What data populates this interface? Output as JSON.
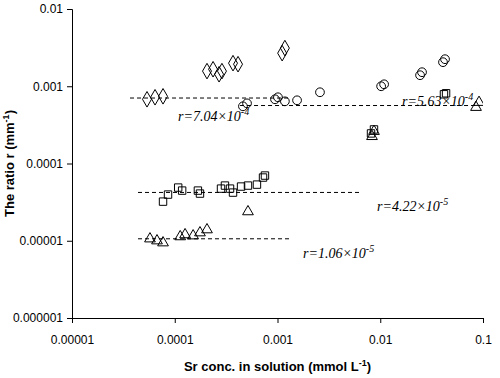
{
  "chart_data": {
    "type": "scatter",
    "log": true,
    "x_label": {
      "text": "Sr conc. in solution (mmol L",
      "superscript": "-1",
      "end": ")"
    },
    "y_label": {
      "text": "The ratio r (mm",
      "superscript": "-1",
      "end": ")"
    },
    "xlim": [
      1e-05,
      0.1
    ],
    "ylim": [
      1e-06,
      0.01
    ],
    "xticks": [
      1e-05,
      0.0001,
      0.001,
      0.01,
      0.1
    ],
    "yticks": [
      1e-06,
      1e-05,
      0.0001,
      0.001,
      0.01
    ],
    "series": [
      {
        "marker": "diamond",
        "color": "#000000",
        "x": [
          5.37e-05,
          6.43e-05,
          7.69e-05,
          0.000206,
          0.000236,
          0.00027,
          0.000288,
          0.000369,
          0.000413,
          0.00111,
          0.00118
        ],
        "values": [
          0.000678,
          0.00072,
          0.000741,
          0.00157,
          0.00166,
          0.00143,
          0.00157,
          0.00199,
          0.00193,
          0.00268,
          0.00312
        ]
      },
      {
        "marker": "circle",
        "color": "#000000",
        "x": [
          0.000461,
          0.000505,
          0.000946,
          0.00101,
          0.00118,
          0.00155,
          0.00259,
          0.0102,
          0.0109,
          0.0244,
          0.0255,
          0.0408,
          0.0427
        ],
        "values": [
          0.00055,
          0.000601,
          0.000678,
          0.00072,
          0.000638,
          0.000658,
          0.000836,
          0.001,
          0.00106,
          0.00139,
          0.00152,
          0.00205,
          0.00224
        ]
      },
      {
        "marker": "square",
        "color": "#000000",
        "x": [
          7.69e-05,
          8.6e-05,
          0.000108,
          0.000118,
          0.000168,
          0.000176,
          0.000282,
          0.000308,
          0.000345,
          0.000369,
          0.000442,
          0.000516,
          0.000631,
          0.000723,
          0.000755,
          0.00813,
          0.00869,
          0.0417,
          0.0437
        ],
        "values": [
          3.21e-05,
          3.96e-05,
          4.88e-05,
          4.46e-05,
          4.46e-05,
          4.08e-05,
          4.73e-05,
          5.18e-05,
          4.73e-05,
          4.2e-05,
          5.03e-05,
          5.18e-05,
          5.33e-05,
          6.58e-05,
          6.98e-05,
          0.000245,
          0.000276,
          0.000787,
          0.000811
        ]
      },
      {
        "marker": "triangle",
        "color": "#000000",
        "x": [
          5.74e-05,
          6.72e-05,
          7.69e-05,
          0.000113,
          0.000126,
          0.000151,
          0.000176,
          0.000206,
          0.000516,
          0.00831,
          0.00869,
          0.0855,
          0.0915
        ],
        "values": [
          1.06e-05,
          1e-05,
          9.42e-06,
          1.13e-05,
          1.2e-05,
          1.16e-05,
          1.27e-05,
          1.39e-05,
          2.38e-05,
          0.000224,
          0.000261,
          0.000534,
          0.00062
        ]
      }
    ],
    "reference_lines": [
      {
        "y": 0.000704,
        "x": [
          3.67e-05,
          0.00132
        ],
        "line_style": "dashed",
        "text": "r=7.04×10",
        "superscript": "-4"
      },
      {
        "y": 0.000563,
        "x": [
          0.000432,
          0.0935
        ],
        "line_style": "dashed",
        "text": "r=5.63×10",
        "superscript": "-4"
      },
      {
        "y": 4.22e-05,
        "x": [
          4.39e-05,
          0.00635
        ],
        "line_style": "dashed",
        "text": "r=4.22×10",
        "superscript": "-5"
      },
      {
        "y": 1.06e-05,
        "x": [
          4.39e-05,
          0.00132
        ],
        "line_style": "dashed",
        "text": "r=1.06×10",
        "superscript": "-5"
      }
    ]
  }
}
